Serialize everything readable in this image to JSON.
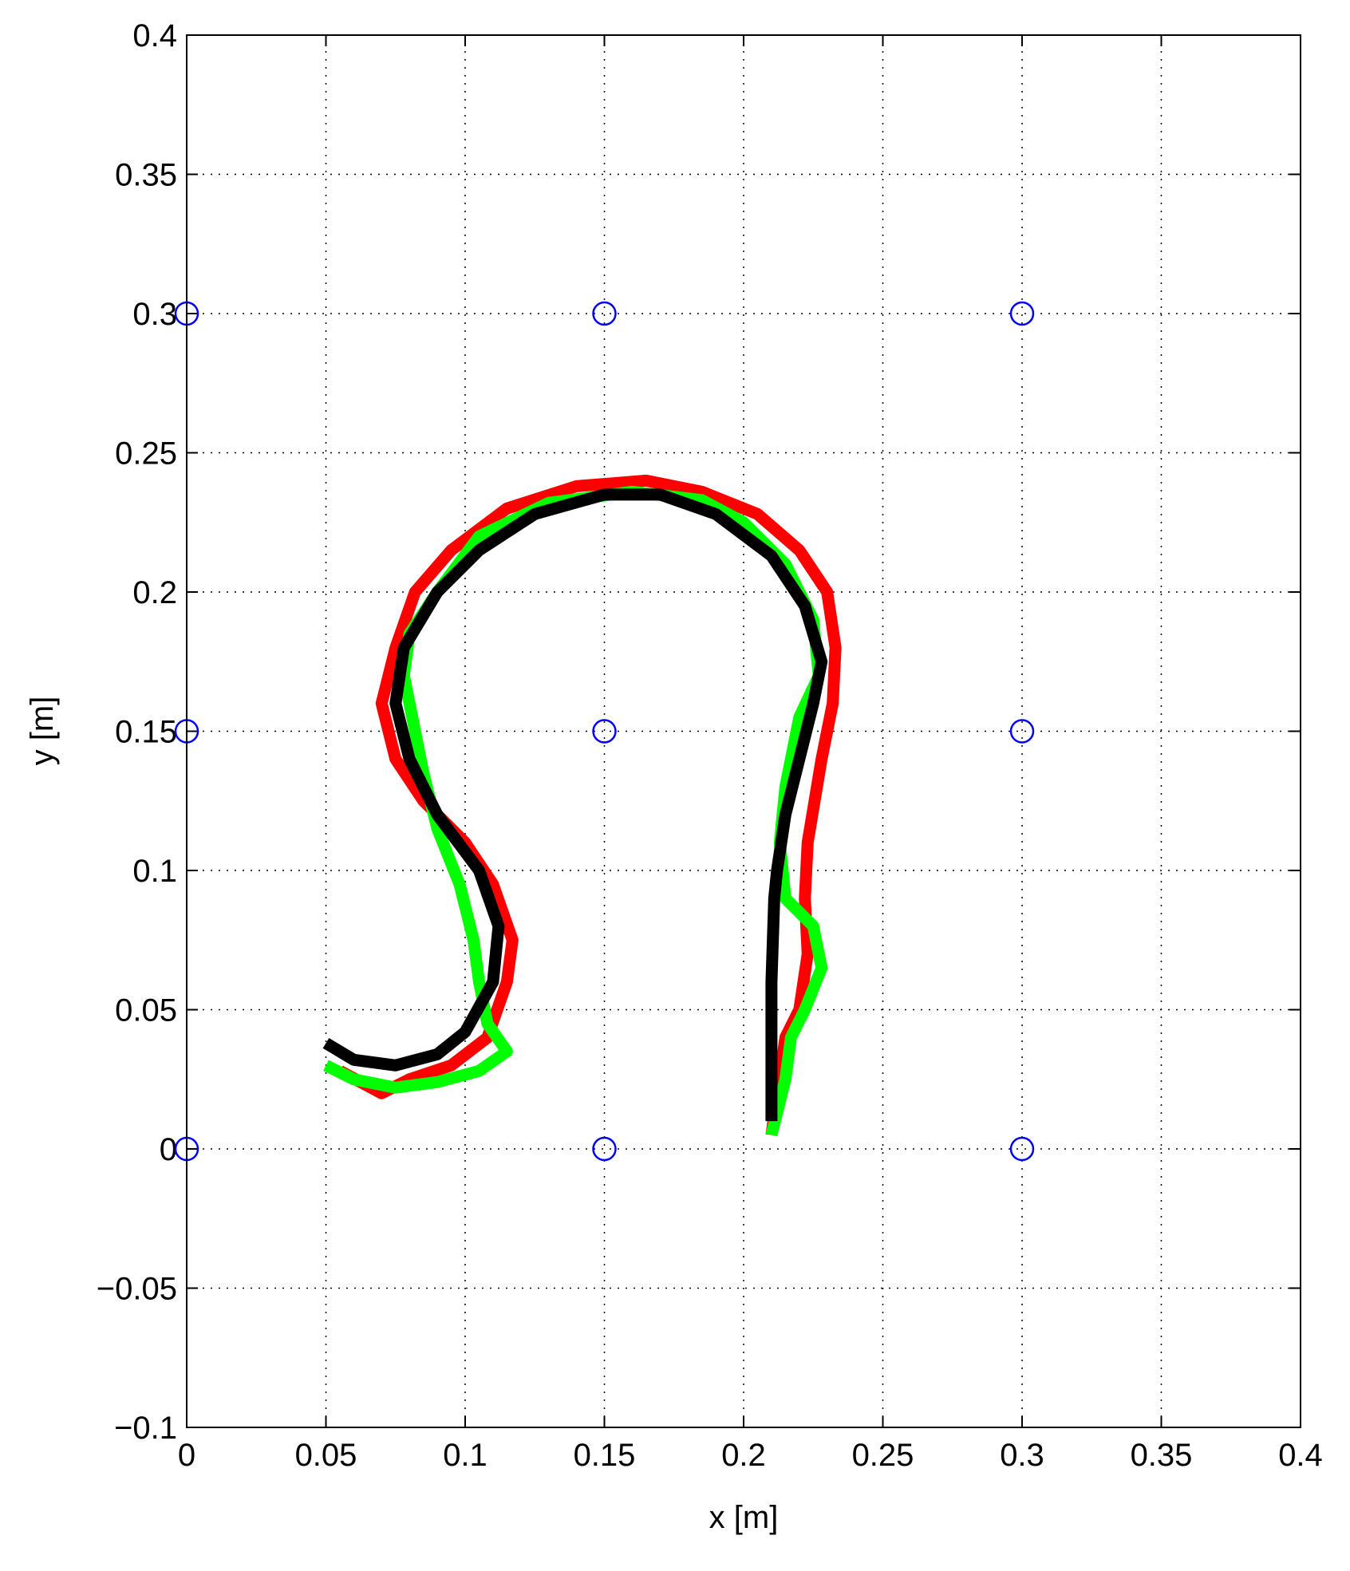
{
  "chart_data": {
    "type": "line",
    "xlabel": "x [m]",
    "ylabel": "y [m]",
    "xlim": [
      0,
      0.4
    ],
    "ylim": [
      -0.1,
      0.4
    ],
    "xticks": [
      0,
      0.05,
      0.1,
      0.15,
      0.2,
      0.25,
      0.3,
      0.35,
      0.4
    ],
    "yticks": [
      {
        "value": -0.1,
        "label": "−0.1"
      },
      {
        "value": -0.05,
        "label": "−0.05"
      },
      0,
      0.05,
      0.1,
      0.15,
      0.2,
      0.25,
      0.3,
      0.35,
      0.4
    ],
    "grid": true,
    "series": [
      {
        "color": "#ff0000",
        "style": "line",
        "x": [
          0.21,
          0.215,
          0.22,
          0.223,
          0.222,
          0.223,
          0.228,
          0.232,
          0.233,
          0.23,
          0.22,
          0.205,
          0.185,
          0.165,
          0.14,
          0.115,
          0.095,
          0.082,
          0.075,
          0.07,
          0.075,
          0.085,
          0.1,
          0.11,
          0.117,
          0.115,
          0.108,
          0.095,
          0.08,
          0.07,
          0.055
        ],
        "values": [
          0.005,
          0.04,
          0.05,
          0.07,
          0.09,
          0.11,
          0.14,
          0.16,
          0.18,
          0.2,
          0.215,
          0.228,
          0.236,
          0.24,
          0.238,
          0.23,
          0.215,
          0.2,
          0.18,
          0.16,
          0.14,
          0.125,
          0.11,
          0.095,
          0.075,
          0.06,
          0.04,
          0.03,
          0.025,
          0.02,
          0.028
        ]
      },
      {
        "color": "#00ff00",
        "style": "line",
        "x": [
          0.05,
          0.06,
          0.075,
          0.09,
          0.105,
          0.115,
          0.108,
          0.105,
          0.103,
          0.098,
          0.09,
          0.085,
          0.078,
          0.08,
          0.09,
          0.105,
          0.13,
          0.16,
          0.185,
          0.2,
          0.215,
          0.225,
          0.227,
          0.22,
          0.215,
          0.213,
          0.215,
          0.225,
          0.228,
          0.222,
          0.217,
          0.215,
          0.21
        ],
        "values": [
          0.03,
          0.025,
          0.022,
          0.024,
          0.028,
          0.035,
          0.045,
          0.06,
          0.075,
          0.095,
          0.115,
          0.135,
          0.17,
          0.185,
          0.2,
          0.22,
          0.232,
          0.236,
          0.233,
          0.225,
          0.21,
          0.19,
          0.17,
          0.155,
          0.13,
          0.11,
          0.09,
          0.08,
          0.065,
          0.05,
          0.04,
          0.025,
          0.005
        ]
      },
      {
        "color": "#000000",
        "style": "line",
        "x": [
          0.05,
          0.06,
          0.075,
          0.09,
          0.1,
          0.11,
          0.112,
          0.105,
          0.09,
          0.08,
          0.075,
          0.078,
          0.09,
          0.105,
          0.125,
          0.15,
          0.17,
          0.19,
          0.21,
          0.222,
          0.228,
          0.225,
          0.22,
          0.215,
          0.212,
          0.211,
          0.21,
          0.21,
          0.21
        ],
        "values": [
          0.038,
          0.032,
          0.03,
          0.034,
          0.042,
          0.06,
          0.08,
          0.1,
          0.12,
          0.14,
          0.16,
          0.18,
          0.2,
          0.215,
          0.228,
          0.235,
          0.235,
          0.228,
          0.213,
          0.195,
          0.175,
          0.16,
          0.14,
          0.12,
          0.1,
          0.09,
          0.06,
          0.03,
          0.01
        ]
      },
      {
        "color": "#0000ff",
        "style": "markers",
        "x": [
          0,
          0.15,
          0.3,
          0,
          0.15,
          0.3,
          0,
          0.15,
          0.3
        ],
        "values": [
          0.3,
          0.3,
          0.3,
          0.15,
          0.15,
          0.15,
          0,
          0,
          0
        ]
      }
    ]
  }
}
